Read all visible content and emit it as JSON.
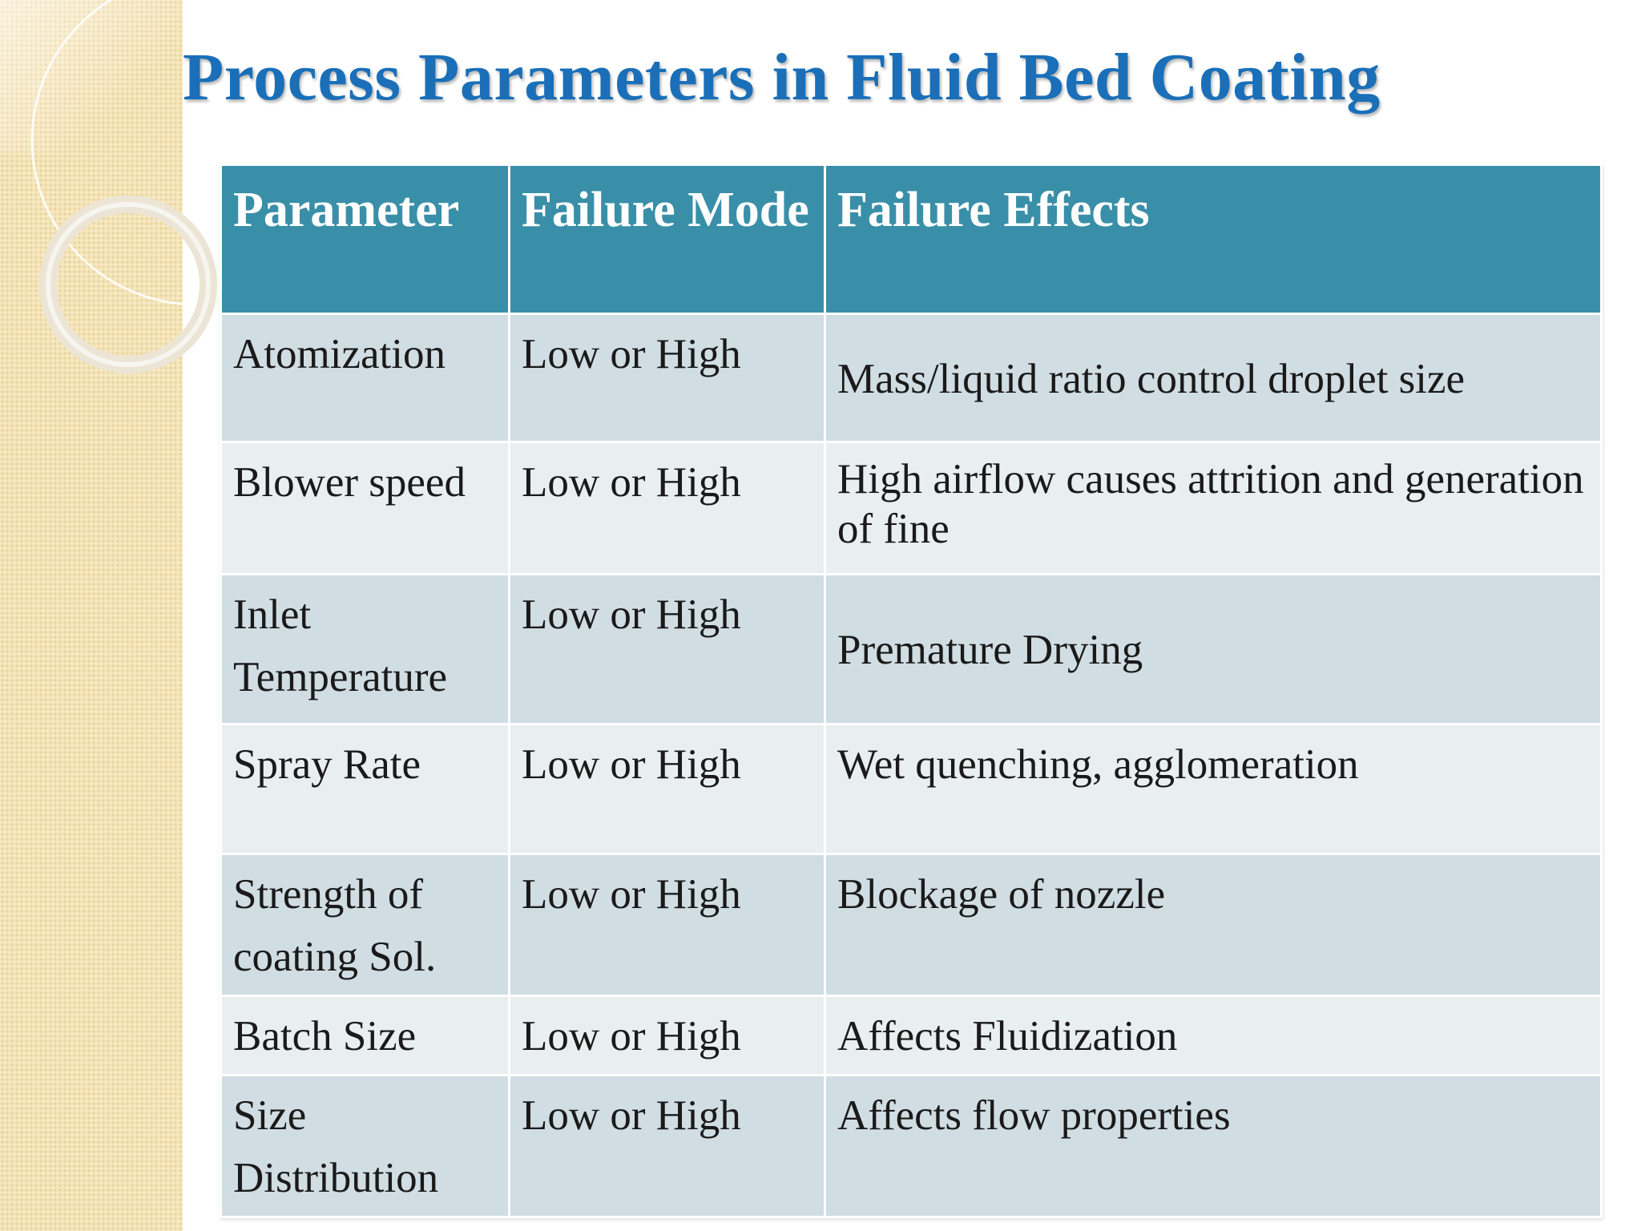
{
  "slide": {
    "title": "Process Parameters in Fluid Bed Coating"
  },
  "table": {
    "headers": {
      "parameter": "Parameter",
      "failure_mode": "Failure Mode",
      "failure_effects": "Failure Effects"
    },
    "rows": [
      {
        "parameter": "Atomization",
        "failure_mode": "Low or High",
        "failure_effects": "Mass/liquid ratio control droplet size"
      },
      {
        "parameter": "Blower speed",
        "failure_mode": "Low or High",
        "failure_effects": "High airflow causes attrition and generation of fine"
      },
      {
        "parameter": "Inlet Temperature",
        "failure_mode": "Low or High",
        "failure_effects": "Premature Drying"
      },
      {
        "parameter": "Spray Rate",
        "failure_mode": "Low or High",
        "failure_effects": "Wet quenching, agglomeration"
      },
      {
        "parameter": "Strength of coating Sol.",
        "failure_mode": "Low or High",
        "failure_effects": "Blockage of nozzle"
      },
      {
        "parameter": "Batch Size",
        "failure_mode": "Low or High",
        "failure_effects": "Affects Fluidization"
      },
      {
        "parameter": "Size Distribution",
        "failure_mode": "Low or High",
        "failure_effects": "Affects flow properties"
      }
    ]
  },
  "colors": {
    "title": "#1a6fb8",
    "header_bg": "#3a8fa8",
    "row_odd_bg": "#d0dde3",
    "row_even_bg": "#e9eef1",
    "side_band": "#f5e4b7"
  }
}
